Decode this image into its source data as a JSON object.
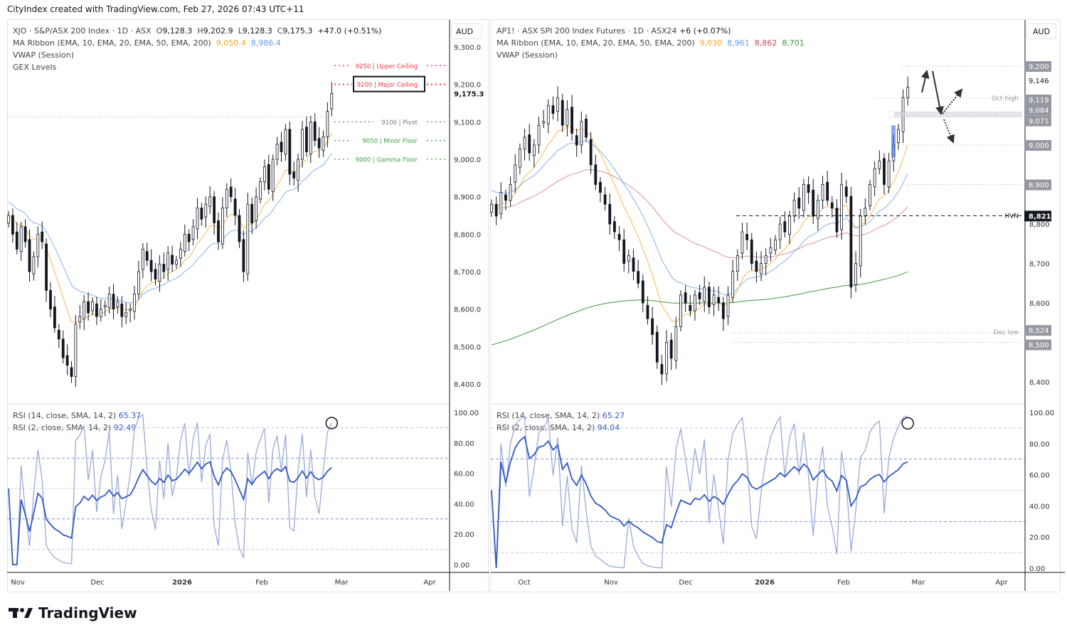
{
  "caption": "CityIndex created with TradingView.com, Feb 27, 2026 07:43 UTC+11",
  "logo": "TradingView",
  "colors": {
    "ema10": "#f5a623",
    "ema20": "#64a0e8",
    "ema50": "#c8465a",
    "ema200": "#3c9a3c",
    "rsi14": "#3358c4",
    "rsi2": "#9aa9d8",
    "red": "#f23645",
    "green": "#43a047"
  },
  "left": {
    "title": "XJO · S&P/ASX 200 Index · 1D · ASX",
    "o_label": "O",
    "open": "9,128.3",
    "h_label": "H",
    "high": "9,202.9",
    "l_label": "L",
    "low": "9,128.3",
    "c_label": "C",
    "close": "9,175.3",
    "change": "+47.0 (+0.51%)",
    "ma_label": "MA Ribbon (EMA, 10, EMA, 20, EMA, 50, EMA, 200)",
    "ma_values": [
      "9,050.4",
      "8,986.4"
    ],
    "vwap": "VWAP (Session)",
    "gex": "GEX Levels",
    "currency": "AUD",
    "last_price": "9,175.3",
    "levels": [
      {
        "text": "9250 | Upper Ceiling",
        "value": 9250,
        "color": "red"
      },
      {
        "text": "9200 | Major Ceiling",
        "value": 9200,
        "color": "red",
        "boxed": true
      },
      {
        "text": "9100 | Pivot",
        "value": 9100,
        "color": "gray"
      },
      {
        "text": "9050 | Minor Floor",
        "value": 9050,
        "color": "green"
      },
      {
        "text": "9000 | Gamma Floor",
        "value": 9000,
        "color": "green"
      }
    ],
    "rsi14_label": "RSI (14, close, SMA, 14, 2)",
    "rsi14_value": "65.37",
    "rsi2_label": "RSI (2, close, SMA, 14, 2)",
    "rsi2_value": "92.49",
    "time_ticks": [
      "Nov",
      "Dec",
      "2026",
      "Feb",
      "Mar",
      "Apr"
    ]
  },
  "right": {
    "title": "AP1! · ASX SPI 200 Index Futures · 1D · ASX24",
    "change": "+6 (+0.07%)",
    "ma_label": "MA Ribbon (EMA, 10, EMA, 20, EMA, 50, EMA, 200)",
    "ma_values": [
      "9,030",
      "8,961",
      "8,862",
      "8,701"
    ],
    "vwap": "VWAP (Session)",
    "currency": "AUD",
    "marked_levels": [
      "9,200",
      "9,146",
      "9,119",
      "9,084",
      "9,071",
      "9,000",
      "8,900",
      "8,821",
      "8,524",
      "8,500"
    ],
    "annotations": {
      "oct_high": "Oct high",
      "hvn": "HVN",
      "dec_low": "Dec low"
    },
    "rsi14_label": "RSI (14, close, SMA, 14, 2)",
    "rsi14_value": "65.27",
    "rsi2_label": "RSI (2, close, SMA, 14, 2)",
    "rsi2_value": "94.04",
    "time_ticks": [
      "Oct",
      "Nov",
      "Dec",
      "2026",
      "Feb",
      "Mar",
      "Apr"
    ]
  },
  "chart_data": [
    {
      "type": "candlestick",
      "name": "XJO",
      "yaxis_ticks": [
        "9,300.0",
        "9,200.0",
        "9,100.0",
        "9,000.0",
        "8,900.0",
        "8,800.0",
        "8,700.0",
        "8,600.0",
        "8,500.0",
        "8,400.0"
      ],
      "ylim": [
        8400,
        9300
      ],
      "closes": [
        8850,
        8800,
        8760,
        8820,
        8780,
        8700,
        8740,
        8800,
        8780,
        8650,
        8600,
        8550,
        8520,
        8470,
        8450,
        8420,
        8560,
        8580,
        8620,
        8590,
        8620,
        8580,
        8600,
        8610,
        8640,
        8600,
        8620,
        8580,
        8590,
        8600,
        8640,
        8700,
        8760,
        8730,
        8700,
        8680,
        8720,
        8700,
        8750,
        8720,
        8730,
        8760,
        8800,
        8780,
        8820,
        8870,
        8840,
        8880,
        8900,
        8830,
        8780,
        8870,
        8920,
        8900,
        8850,
        8780,
        8700,
        8880,
        8830,
        8900,
        8940,
        8980,
        8920,
        9000,
        9040,
        9020,
        9080,
        8960,
        8950,
        9000,
        9080,
        9020,
        9100,
        9050,
        9030,
        9060,
        9128.3,
        9175.3
      ],
      "rsi_ticks": [
        "100.00",
        "80.00",
        "60.00",
        "40.00",
        "20.00",
        "0.00"
      ]
    },
    {
      "type": "candlestick",
      "name": "AP1!",
      "yaxis_ticks": [
        "8,800",
        "8,700",
        "8,600",
        "8,400"
      ],
      "ylim": [
        8400,
        9200
      ],
      "closes": [
        8850,
        8820,
        8880,
        8860,
        8900,
        8950,
        8990,
        9020,
        8980,
        9000,
        9050,
        9060,
        9100,
        9080,
        9119,
        9050,
        9090,
        9030,
        9000,
        9060,
        9020,
        8950,
        8900,
        8880,
        8850,
        8800,
        8780,
        8760,
        8700,
        8720,
        8680,
        8650,
        8600,
        8560,
        8520,
        8450,
        8420,
        8500,
        8460,
        8540,
        8620,
        8600,
        8580,
        8620,
        8610,
        8640,
        8590,
        8620,
        8600,
        8560,
        8620,
        8680,
        8720,
        8780,
        8760,
        8700,
        8680,
        8700,
        8720,
        8740,
        8760,
        8800,
        8780,
        8820,
        8860,
        8840,
        8900,
        8880,
        8820,
        8860,
        8900,
        8860,
        8840,
        8780,
        8900,
        8870,
        8640,
        8700,
        8820,
        8840,
        8900,
        8940,
        8960,
        8900,
        8960,
        9000,
        9040,
        9120,
        9146
      ],
      "rsi_ticks": [
        "100.00",
        "80.00",
        "60.00",
        "40.00",
        "20.00",
        "0.00"
      ]
    }
  ]
}
